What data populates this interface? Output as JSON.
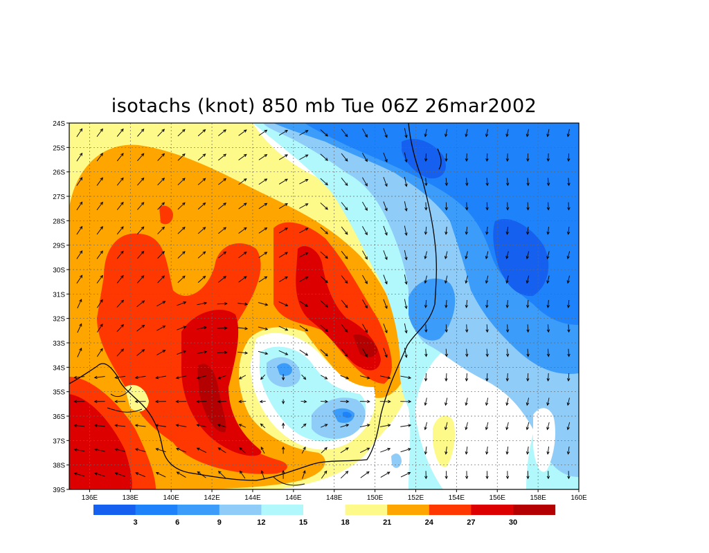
{
  "title": "isotachs (knot) 850 mb Tue 06Z 26mar2002",
  "lat_labels": [
    "24S",
    "25S",
    "26S",
    "27S",
    "28S",
    "29S",
    "30S",
    "31S",
    "32S",
    "33S",
    "34S",
    "35S",
    "36S",
    "37S",
    "38S",
    "39S"
  ],
  "lon_labels": [
    "136E",
    "138E",
    "140E",
    "142E",
    "144E",
    "146E",
    "148E",
    "150E",
    "152E",
    "154E",
    "156E",
    "158E",
    "160E"
  ],
  "legend": {
    "colors": [
      "#1560ee",
      "#1e82fa",
      "#3c9cf9",
      "#8fccf8",
      "#b0f8fc",
      "#ffffff",
      "#fdfa8a",
      "#fea500",
      "#fe3800",
      "#dd0000",
      "#b40000"
    ],
    "labels": [
      "3",
      "6",
      "9",
      "12",
      "15",
      "18",
      "21",
      "24",
      "27",
      "30"
    ]
  },
  "chart_data": {
    "type": "heatmap",
    "variable": "isotachs (knot)",
    "level": "850 mb",
    "time": "Tue 06Z 26mar2002",
    "xlim": [
      135.0,
      160.0
    ],
    "ylim": [
      -39,
      -24
    ],
    "contour_levels": [
      3,
      6,
      9,
      12,
      15,
      18,
      21,
      24,
      27,
      30
    ]
  }
}
